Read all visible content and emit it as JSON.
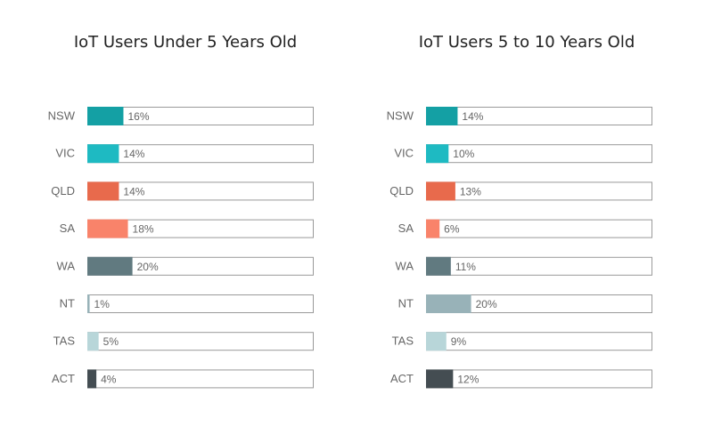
{
  "chart_data": [
    {
      "type": "bar",
      "orientation": "horizontal",
      "title": "IoT Users Under 5 Years Old",
      "categories": [
        "NSW",
        "VIC",
        "QLD",
        "SA",
        "WA",
        "NT",
        "TAS",
        "ACT"
      ],
      "values": [
        16,
        14,
        14,
        18,
        20,
        1,
        5,
        4
      ],
      "value_labels": [
        "16%",
        "14%",
        "14%",
        "18%",
        "20%",
        "1%",
        "5%",
        "4%"
      ],
      "xlim": [
        0,
        100
      ],
      "unit": "%",
      "grid": false,
      "legend": "none"
    },
    {
      "type": "bar",
      "orientation": "horizontal",
      "title": "IoT Users 5 to 10 Years Old",
      "categories": [
        "NSW",
        "VIC",
        "QLD",
        "SA",
        "WA",
        "NT",
        "TAS",
        "ACT"
      ],
      "values": [
        14,
        10,
        13,
        6,
        11,
        20,
        9,
        12
      ],
      "value_labels": [
        "14%",
        "10%",
        "13%",
        "6%",
        "11%",
        "20%",
        "9%",
        "12%"
      ],
      "xlim": [
        0,
        100
      ],
      "unit": "%",
      "grid": false,
      "legend": "none"
    }
  ],
  "colors": {
    "NSW": "#14a0a4",
    "VIC": "#1ebac2",
    "QLD": "#e86a4c",
    "SA": "#f9836a",
    "WA": "#617a80",
    "NT": "#98b2b8",
    "TAS": "#b8d6d9",
    "ACT": "#444d52",
    "track_border": "#9a9a9a",
    "text": "#666666",
    "title": "#222222"
  }
}
